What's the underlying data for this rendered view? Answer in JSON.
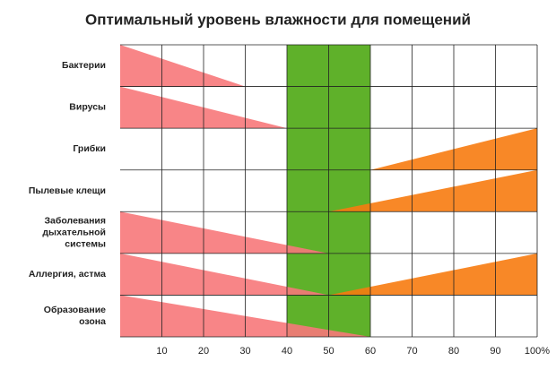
{
  "chart_data": {
    "type": "range-wedge",
    "title": "Оптимальный уровень влажности для помещений",
    "xlim": [
      0,
      100
    ],
    "xticks": [
      10,
      20,
      30,
      40,
      50,
      60,
      70,
      80,
      90,
      {
        "value": 100,
        "label": "100%"
      }
    ],
    "grid": true,
    "optimal": {
      "from": 40,
      "to": 60,
      "color": "#5fb12a"
    },
    "colors": {
      "decrease": "#f7787a",
      "increase": "#f77b10"
    },
    "rows": [
      {
        "label": [
          "Бактерии"
        ],
        "ranges": [
          {
            "kind": "decrease",
            "from": 0,
            "to": 30
          }
        ]
      },
      {
        "label": [
          "Вирусы"
        ],
        "ranges": [
          {
            "kind": "decrease",
            "from": 0,
            "to": 40
          }
        ]
      },
      {
        "label": [
          "Грибки"
        ],
        "ranges": [
          {
            "kind": "increase",
            "from": 60,
            "to": 100
          }
        ]
      },
      {
        "label": [
          "Пылевые клещи"
        ],
        "ranges": [
          {
            "kind": "increase",
            "from": 50,
            "to": 100
          }
        ]
      },
      {
        "label": [
          "Заболевания",
          "дыхательной",
          "системы"
        ],
        "ranges": [
          {
            "kind": "decrease",
            "from": 0,
            "to": 50
          }
        ]
      },
      {
        "label": [
          "Аллергия, астма"
        ],
        "ranges": [
          {
            "kind": "decrease",
            "from": 0,
            "to": 50
          },
          {
            "kind": "increase",
            "from": 50,
            "to": 100
          }
        ]
      },
      {
        "label": [
          "Образование",
          "озона"
        ],
        "ranges": [
          {
            "kind": "decrease",
            "from": 0,
            "to": 60
          }
        ]
      }
    ]
  }
}
